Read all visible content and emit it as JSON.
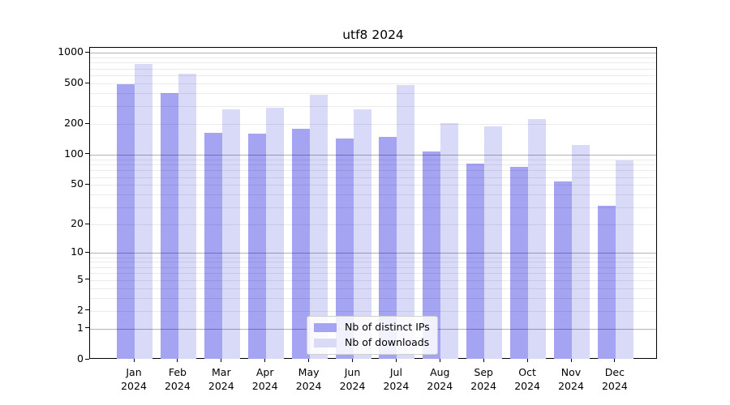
{
  "title": "utf8 2024",
  "chart_data": {
    "type": "bar",
    "title": "utf8 2024",
    "categories": [
      "Jan 2024",
      "Feb 2024",
      "Mar 2024",
      "Apr 2024",
      "May 2024",
      "Jun 2024",
      "Jul 2024",
      "Aug 2024",
      "Sep 2024",
      "Oct 2024",
      "Nov 2024",
      "Dec 2024"
    ],
    "series": [
      {
        "name": "Nb of distinct IPs",
        "color": "#a4a4f2",
        "values": [
          490,
          400,
          165,
          160,
          180,
          145,
          150,
          107,
          82,
          75,
          54,
          31
        ]
      },
      {
        "name": "Nb of downloads",
        "color": "#d9d9f8",
        "values": [
          780,
          620,
          280,
          290,
          390,
          280,
          480,
          205,
          190,
          225,
          124,
          88
        ]
      }
    ],
    "ylabel": "",
    "xlabel": "",
    "yscale": "log10(1+y)",
    "ylim": [
      0,
      1100
    ],
    "yticks": [
      0,
      1,
      2,
      5,
      10,
      20,
      50,
      100,
      200,
      500,
      1000
    ],
    "grid": "horizontal major+minor",
    "legend_position": "lower center"
  },
  "legend": {
    "items": [
      {
        "label": "Nb of distinct IPs",
        "color": "#a4a4f2"
      },
      {
        "label": "Nb of downloads",
        "color": "#d9d9f8"
      }
    ]
  },
  "colors": {
    "bar_distinct_ips": "#a4a4f2",
    "bar_downloads": "#d9d9f8",
    "grid_major": "#b2b2b2",
    "grid_minor": "#ebebeb",
    "axis": "#000000",
    "background": "#ffffff"
  }
}
